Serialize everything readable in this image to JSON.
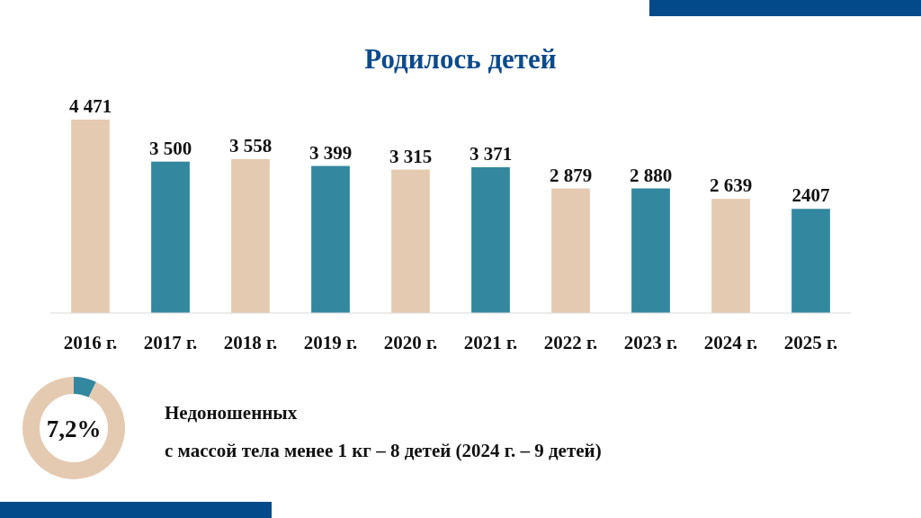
{
  "chart_data": [
    {
      "type": "bar",
      "title": "Родилось детей",
      "categories": [
        "2016 г.",
        "2017 г.",
        "2018 г.",
        "2019 г.",
        "2020 г.",
        "2021 г.",
        "2022 г.",
        "2023 г.",
        "2024 г.",
        "2025 г."
      ],
      "values": [
        4471,
        3500,
        3558,
        3399,
        3315,
        3371,
        2879,
        2880,
        2639,
        2407
      ],
      "colors": [
        "#e5cab2",
        "#33879e",
        "#e5cab2",
        "#33879e",
        "#e5cab2",
        "#33879e",
        "#e5cab2",
        "#33879e",
        "#e5cab2",
        "#33879e"
      ],
      "value_labels": [
        "4 471",
        "3 500",
        "3 558",
        "3 399",
        "3 315",
        "3 371",
        "2 879",
        "2 880",
        "2 639",
        "2407"
      ]
    },
    {
      "type": "donut",
      "categories": [
        null,
        null
      ],
      "values": [
        7.2,
        92.8
      ],
      "colors": [
        "#33879e",
        "#e5cab2"
      ],
      "annotations": [
        "7,2%",
        "Недоношенных",
        "с массой тела менее 1 кг – 8 детей (2024 г. – 9 детей)"
      ]
    }
  ]
}
